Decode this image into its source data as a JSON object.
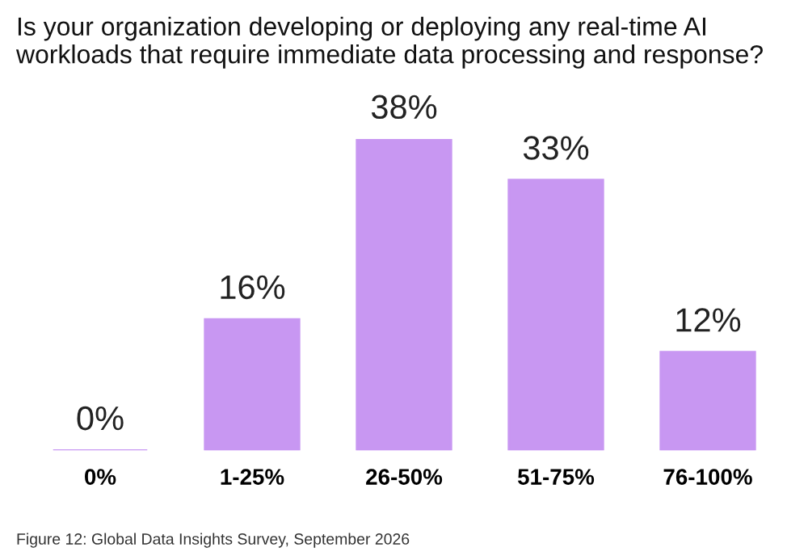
{
  "chart_data": {
    "type": "bar",
    "title": "Is your organization developing or deploying any real-time AI workloads that require immediate data processing and response?",
    "categories": [
      "0%",
      "1-25%",
      "26-50%",
      "51-75%",
      "76-100%"
    ],
    "values": [
      0,
      16,
      38,
      33,
      12
    ],
    "value_labels": [
      "0%",
      "16%",
      "38%",
      "33%",
      "12%"
    ],
    "color": "#c897f2",
    "annotations": [
      "Figure 12: Global Data Insights Survey, September 2026"
    ]
  }
}
